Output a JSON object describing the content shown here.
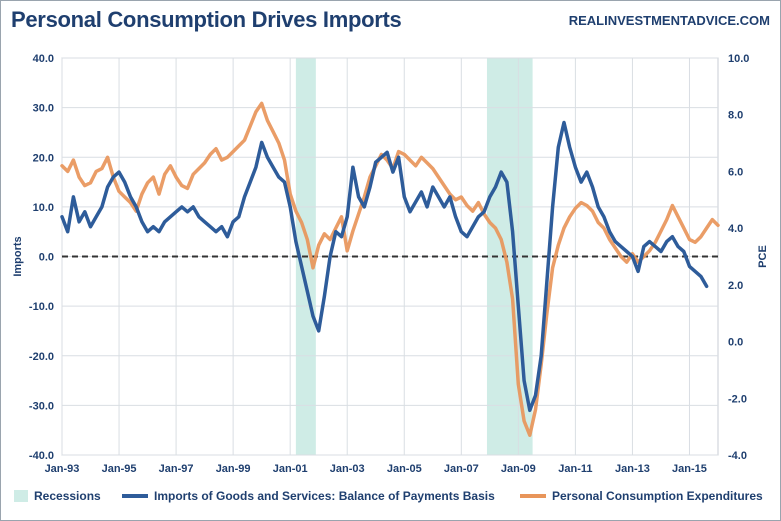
{
  "header": {
    "title": "Personal Consumption Drives Imports",
    "source": "REALINVESTMENTADVICE.COM"
  },
  "chart_data": {
    "type": "line",
    "title": "Personal Consumption Drives Imports",
    "ylabel": "Imports",
    "y2label": "PCE",
    "ylim": [
      -40,
      40
    ],
    "y2lim": [
      -4,
      10
    ],
    "yticks": [
      "40.0",
      "30.0",
      "20.0",
      "10.0",
      "0.0",
      "-10.0",
      "-20.0",
      "-30.0",
      "-40.0"
    ],
    "y2ticks": [
      "10.0",
      "8.0",
      "6.0",
      "4.0",
      "2.0",
      "0.0",
      "-2.0",
      "-4.0"
    ],
    "xlim": [
      1993.0,
      2016.0
    ],
    "xticks": [
      {
        "label": "Jan-93",
        "x": 1993
      },
      {
        "label": "Jan-95",
        "x": 1995
      },
      {
        "label": "Jan-97",
        "x": 1997
      },
      {
        "label": "Jan-99",
        "x": 1999
      },
      {
        "label": "Jan-01",
        "x": 2001
      },
      {
        "label": "Jan-03",
        "x": 2003
      },
      {
        "label": "Jan-05",
        "x": 2005
      },
      {
        "label": "Jan-07",
        "x": 2007
      },
      {
        "label": "Jan-09",
        "x": 2009
      },
      {
        "label": "Jan-11",
        "x": 2011
      },
      {
        "label": "Jan-13",
        "x": 2013
      },
      {
        "label": "Jan-15",
        "x": 2015
      }
    ],
    "grid": true,
    "zero_line": {
      "y": 0,
      "style": "dashed"
    },
    "legend_position": "bottom",
    "recessions": [
      {
        "start": 2001.2,
        "end": 2001.9
      },
      {
        "start": 2007.9,
        "end": 2009.5
      }
    ],
    "series": [
      {
        "name": "Imports of Goods and Services: Balance of Payments Basis",
        "axis": "left",
        "color": "#2e5c9a",
        "points": [
          [
            1993.0,
            8
          ],
          [
            1993.2,
            5
          ],
          [
            1993.4,
            12
          ],
          [
            1993.6,
            7
          ],
          [
            1993.8,
            9
          ],
          [
            1994.0,
            6
          ],
          [
            1994.2,
            8
          ],
          [
            1994.4,
            10
          ],
          [
            1994.6,
            14
          ],
          [
            1994.8,
            16
          ],
          [
            1995.0,
            17
          ],
          [
            1995.2,
            15
          ],
          [
            1995.4,
            12
          ],
          [
            1995.6,
            10
          ],
          [
            1995.8,
            7
          ],
          [
            1996.0,
            5
          ],
          [
            1996.2,
            6
          ],
          [
            1996.4,
            5
          ],
          [
            1996.6,
            7
          ],
          [
            1996.8,
            8
          ],
          [
            1997.0,
            9
          ],
          [
            1997.2,
            10
          ],
          [
            1997.4,
            9
          ],
          [
            1997.6,
            10
          ],
          [
            1997.8,
            8
          ],
          [
            1998.0,
            7
          ],
          [
            1998.2,
            6
          ],
          [
            1998.4,
            5
          ],
          [
            1998.6,
            6
          ],
          [
            1998.8,
            4
          ],
          [
            1999.0,
            7
          ],
          [
            1999.2,
            8
          ],
          [
            1999.4,
            12
          ],
          [
            1999.6,
            15
          ],
          [
            1999.8,
            18
          ],
          [
            2000.0,
            23
          ],
          [
            2000.2,
            20
          ],
          [
            2000.4,
            18
          ],
          [
            2000.6,
            16
          ],
          [
            2000.8,
            15
          ],
          [
            2001.0,
            10
          ],
          [
            2001.2,
            3
          ],
          [
            2001.4,
            -2
          ],
          [
            2001.6,
            -7
          ],
          [
            2001.8,
            -12
          ],
          [
            2002.0,
            -15
          ],
          [
            2002.2,
            -8
          ],
          [
            2002.4,
            0
          ],
          [
            2002.6,
            5
          ],
          [
            2002.8,
            4
          ],
          [
            2003.0,
            8
          ],
          [
            2003.2,
            18
          ],
          [
            2003.4,
            12
          ],
          [
            2003.6,
            10
          ],
          [
            2003.8,
            14
          ],
          [
            2004.0,
            19
          ],
          [
            2004.2,
            20
          ],
          [
            2004.4,
            21
          ],
          [
            2004.6,
            17
          ],
          [
            2004.8,
            20
          ],
          [
            2005.0,
            12
          ],
          [
            2005.2,
            9
          ],
          [
            2005.4,
            11
          ],
          [
            2005.6,
            13
          ],
          [
            2005.8,
            10
          ],
          [
            2006.0,
            14
          ],
          [
            2006.2,
            12
          ],
          [
            2006.4,
            10
          ],
          [
            2006.6,
            12
          ],
          [
            2006.8,
            8
          ],
          [
            2007.0,
            5
          ],
          [
            2007.2,
            4
          ],
          [
            2007.4,
            6
          ],
          [
            2007.6,
            8
          ],
          [
            2007.8,
            9
          ],
          [
            2008.0,
            12
          ],
          [
            2008.2,
            14
          ],
          [
            2008.4,
            17
          ],
          [
            2008.6,
            15
          ],
          [
            2008.8,
            5
          ],
          [
            2009.0,
            -10
          ],
          [
            2009.2,
            -25
          ],
          [
            2009.4,
            -31
          ],
          [
            2009.6,
            -28
          ],
          [
            2009.8,
            -20
          ],
          [
            2010.0,
            -5
          ],
          [
            2010.2,
            10
          ],
          [
            2010.4,
            22
          ],
          [
            2010.6,
            27
          ],
          [
            2010.8,
            22
          ],
          [
            2011.0,
            18
          ],
          [
            2011.2,
            15
          ],
          [
            2011.4,
            17
          ],
          [
            2011.6,
            14
          ],
          [
            2011.8,
            10
          ],
          [
            2012.0,
            8
          ],
          [
            2012.2,
            5
          ],
          [
            2012.4,
            3
          ],
          [
            2012.6,
            2
          ],
          [
            2012.8,
            1
          ],
          [
            2013.0,
            0
          ],
          [
            2013.2,
            -3
          ],
          [
            2013.4,
            2
          ],
          [
            2013.6,
            3
          ],
          [
            2013.8,
            2
          ],
          [
            2014.0,
            1
          ],
          [
            2014.2,
            3
          ],
          [
            2014.4,
            4
          ],
          [
            2014.6,
            2
          ],
          [
            2014.8,
            1
          ],
          [
            2015.0,
            -2
          ],
          [
            2015.2,
            -3
          ],
          [
            2015.4,
            -4
          ],
          [
            2015.6,
            -6
          ]
        ]
      },
      {
        "name": "Personal Consumption Expenditures",
        "axis": "right",
        "color": "#e8955a",
        "points": [
          [
            1993.0,
            6.2
          ],
          [
            1993.2,
            6.0
          ],
          [
            1993.4,
            6.4
          ],
          [
            1993.6,
            5.8
          ],
          [
            1993.8,
            5.5
          ],
          [
            1994.0,
            5.6
          ],
          [
            1994.2,
            6.0
          ],
          [
            1994.4,
            6.1
          ],
          [
            1994.6,
            6.5
          ],
          [
            1994.8,
            5.8
          ],
          [
            1995.0,
            5.3
          ],
          [
            1995.2,
            5.1
          ],
          [
            1995.4,
            4.9
          ],
          [
            1995.6,
            4.6
          ],
          [
            1995.8,
            5.2
          ],
          [
            1996.0,
            5.6
          ],
          [
            1996.2,
            5.8
          ],
          [
            1996.4,
            5.2
          ],
          [
            1996.6,
            5.9
          ],
          [
            1996.8,
            6.2
          ],
          [
            1997.0,
            5.8
          ],
          [
            1997.2,
            5.5
          ],
          [
            1997.4,
            5.4
          ],
          [
            1997.6,
            5.9
          ],
          [
            1997.8,
            6.1
          ],
          [
            1998.0,
            6.3
          ],
          [
            1998.2,
            6.6
          ],
          [
            1998.4,
            6.8
          ],
          [
            1998.6,
            6.4
          ],
          [
            1998.8,
            6.5
          ],
          [
            1999.0,
            6.7
          ],
          [
            1999.2,
            6.9
          ],
          [
            1999.4,
            7.1
          ],
          [
            1999.6,
            7.6
          ],
          [
            1999.8,
            8.1
          ],
          [
            2000.0,
            8.4
          ],
          [
            2000.2,
            7.8
          ],
          [
            2000.4,
            7.4
          ],
          [
            2000.6,
            7.0
          ],
          [
            2000.8,
            6.4
          ],
          [
            2001.0,
            5.2
          ],
          [
            2001.2,
            4.6
          ],
          [
            2001.4,
            4.2
          ],
          [
            2001.6,
            3.6
          ],
          [
            2001.8,
            2.6
          ],
          [
            2002.0,
            3.4
          ],
          [
            2002.2,
            3.8
          ],
          [
            2002.4,
            3.6
          ],
          [
            2002.6,
            4.0
          ],
          [
            2002.8,
            4.4
          ],
          [
            2003.0,
            3.2
          ],
          [
            2003.2,
            3.9
          ],
          [
            2003.4,
            4.5
          ],
          [
            2003.6,
            5.1
          ],
          [
            2003.8,
            5.8
          ],
          [
            2004.0,
            6.2
          ],
          [
            2004.2,
            6.6
          ],
          [
            2004.4,
            6.4
          ],
          [
            2004.6,
            6.1
          ],
          [
            2004.8,
            6.7
          ],
          [
            2005.0,
            6.6
          ],
          [
            2005.2,
            6.4
          ],
          [
            2005.4,
            6.2
          ],
          [
            2005.6,
            6.5
          ],
          [
            2005.8,
            6.3
          ],
          [
            2006.0,
            6.1
          ],
          [
            2006.2,
            5.8
          ],
          [
            2006.4,
            5.5
          ],
          [
            2006.6,
            5.2
          ],
          [
            2006.8,
            5.0
          ],
          [
            2007.0,
            5.1
          ],
          [
            2007.2,
            4.8
          ],
          [
            2007.4,
            4.6
          ],
          [
            2007.6,
            4.9
          ],
          [
            2007.8,
            4.5
          ],
          [
            2008.0,
            4.2
          ],
          [
            2008.2,
            4.0
          ],
          [
            2008.4,
            3.6
          ],
          [
            2008.6,
            2.8
          ],
          [
            2008.8,
            1.5
          ],
          [
            2009.0,
            -1.5
          ],
          [
            2009.2,
            -2.8
          ],
          [
            2009.4,
            -3.3
          ],
          [
            2009.6,
            -2.4
          ],
          [
            2009.8,
            -0.8
          ],
          [
            2010.0,
            1.0
          ],
          [
            2010.2,
            2.6
          ],
          [
            2010.4,
            3.4
          ],
          [
            2010.6,
            4.0
          ],
          [
            2010.8,
            4.4
          ],
          [
            2011.0,
            4.7
          ],
          [
            2011.2,
            4.9
          ],
          [
            2011.4,
            4.8
          ],
          [
            2011.6,
            4.6
          ],
          [
            2011.8,
            4.2
          ],
          [
            2012.0,
            4.0
          ],
          [
            2012.2,
            3.6
          ],
          [
            2012.4,
            3.3
          ],
          [
            2012.6,
            3.0
          ],
          [
            2012.8,
            2.8
          ],
          [
            2013.0,
            3.1
          ],
          [
            2013.2,
            2.8
          ],
          [
            2013.4,
            3.0
          ],
          [
            2013.6,
            3.2
          ],
          [
            2013.8,
            3.5
          ],
          [
            2014.0,
            3.9
          ],
          [
            2014.2,
            4.3
          ],
          [
            2014.4,
            4.8
          ],
          [
            2014.6,
            4.4
          ],
          [
            2014.8,
            4.0
          ],
          [
            2015.0,
            3.6
          ],
          [
            2015.2,
            3.5
          ],
          [
            2015.4,
            3.7
          ],
          [
            2015.6,
            4.0
          ],
          [
            2015.8,
            4.3
          ],
          [
            2016.0,
            4.1
          ]
        ]
      }
    ],
    "legend": [
      {
        "label": "Recessions",
        "color": "#cfece6",
        "kind": "box"
      },
      {
        "label": "Imports of Goods and Services: Balance of Payments Basis",
        "color": "#2e5c9a",
        "kind": "line"
      },
      {
        "label": "Personal Consumption Expenditures",
        "color": "#e8955a",
        "kind": "line"
      }
    ]
  }
}
